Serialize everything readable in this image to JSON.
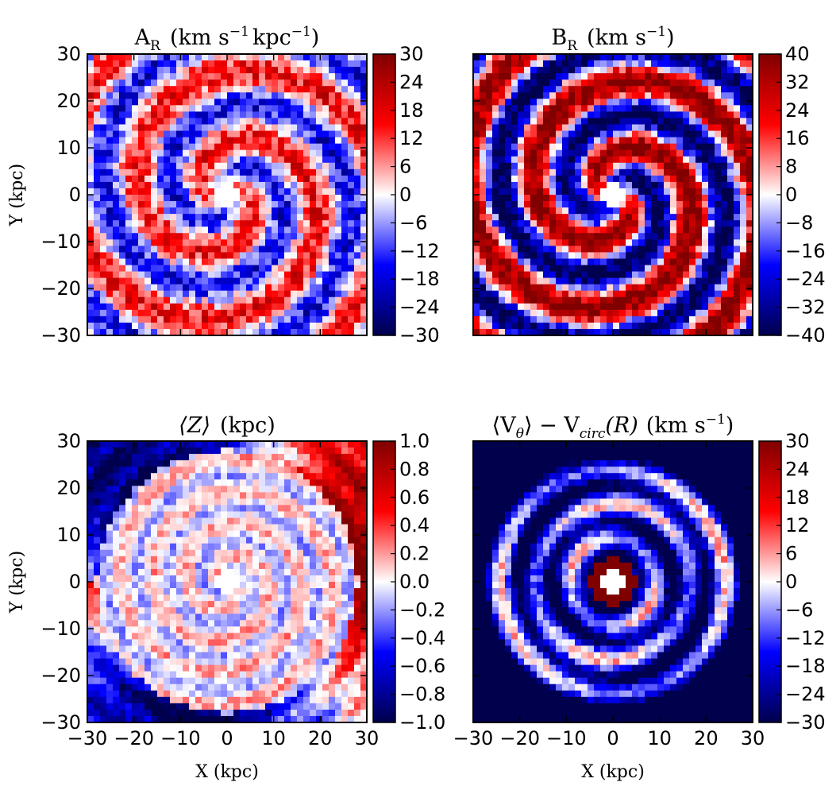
{
  "chart_data": [
    {
      "type": "heatmap",
      "title_main": "A",
      "title_sub": "R",
      "title_units": "(km s",
      "title_exp1": "−1",
      "title_units2": "kpc",
      "title_exp2": "−1",
      "title_close": ")",
      "xlabel": "",
      "ylabel": "Y (kpc)",
      "xlim": [
        -30,
        30
      ],
      "ylim": [
        -30,
        30
      ],
      "xticks": [],
      "yticks": [
        "30",
        "20",
        "10",
        "0",
        "−10",
        "−20",
        "−30"
      ],
      "colorbar": {
        "min": -30,
        "max": 30,
        "ticks": [
          "30",
          "24",
          "18",
          "12",
          "6",
          "0",
          "−6",
          "−12",
          "−18",
          "−24",
          "−30"
        ]
      },
      "colormap": "seismic",
      "pattern": "spiral"
    },
    {
      "type": "heatmap",
      "title_main": "B",
      "title_sub": "R",
      "title_units": "(km s",
      "title_exp1": "−1",
      "title_close": ")",
      "xlabel": "",
      "ylabel": "",
      "xlim": [
        -30,
        30
      ],
      "ylim": [
        -30,
        30
      ],
      "xticks": [],
      "yticks": [],
      "colorbar": {
        "min": -40,
        "max": 40,
        "ticks": [
          "40",
          "32",
          "24",
          "16",
          "8",
          "0",
          "−8",
          "−16",
          "−24",
          "−32",
          "−40"
        ]
      },
      "colormap": "seismic",
      "pattern": "spiral"
    },
    {
      "type": "heatmap",
      "title_main": "⟨Z⟩",
      "title_units": "(kpc)",
      "xlabel": "X (kpc)",
      "ylabel": "Y (kpc)",
      "xlim": [
        -30,
        30
      ],
      "ylim": [
        -30,
        30
      ],
      "xticks": [
        "−30",
        "−20",
        "−10",
        "0",
        "10",
        "20",
        "30"
      ],
      "yticks": [
        "30",
        "20",
        "10",
        "0",
        "−10",
        "−20",
        "−30"
      ],
      "colorbar": {
        "min": -1.0,
        "max": 1.0,
        "ticks": [
          "1.0",
          "0.8",
          "0.6",
          "0.4",
          "0.2",
          "0.0",
          "−0.2",
          "−0.4",
          "−0.6",
          "−0.8",
          "−1.0"
        ]
      },
      "colormap": "seismic",
      "pattern": "rings"
    },
    {
      "type": "heatmap",
      "title_main": "⟨V",
      "title_sub": "θ",
      "title_mid": "⟩ − V",
      "title_sub2": "circ",
      "title_end": "(R)",
      "title_units": "(km s",
      "title_exp1": "−1",
      "title_close": ")",
      "xlabel": "X (kpc)",
      "ylabel": "",
      "xlim": [
        -30,
        30
      ],
      "ylim": [
        -30,
        30
      ],
      "xticks": [
        "−30",
        "−20",
        "−10",
        "0",
        "10",
        "20",
        "30"
      ],
      "yticks": [],
      "colorbar": {
        "min": -30,
        "max": 30,
        "ticks": [
          "30",
          "24",
          "18",
          "12",
          "6",
          "0",
          "−6",
          "−12",
          "−18",
          "−24",
          "−30"
        ]
      },
      "colormap": "seismic",
      "pattern": "rings-strong"
    }
  ]
}
